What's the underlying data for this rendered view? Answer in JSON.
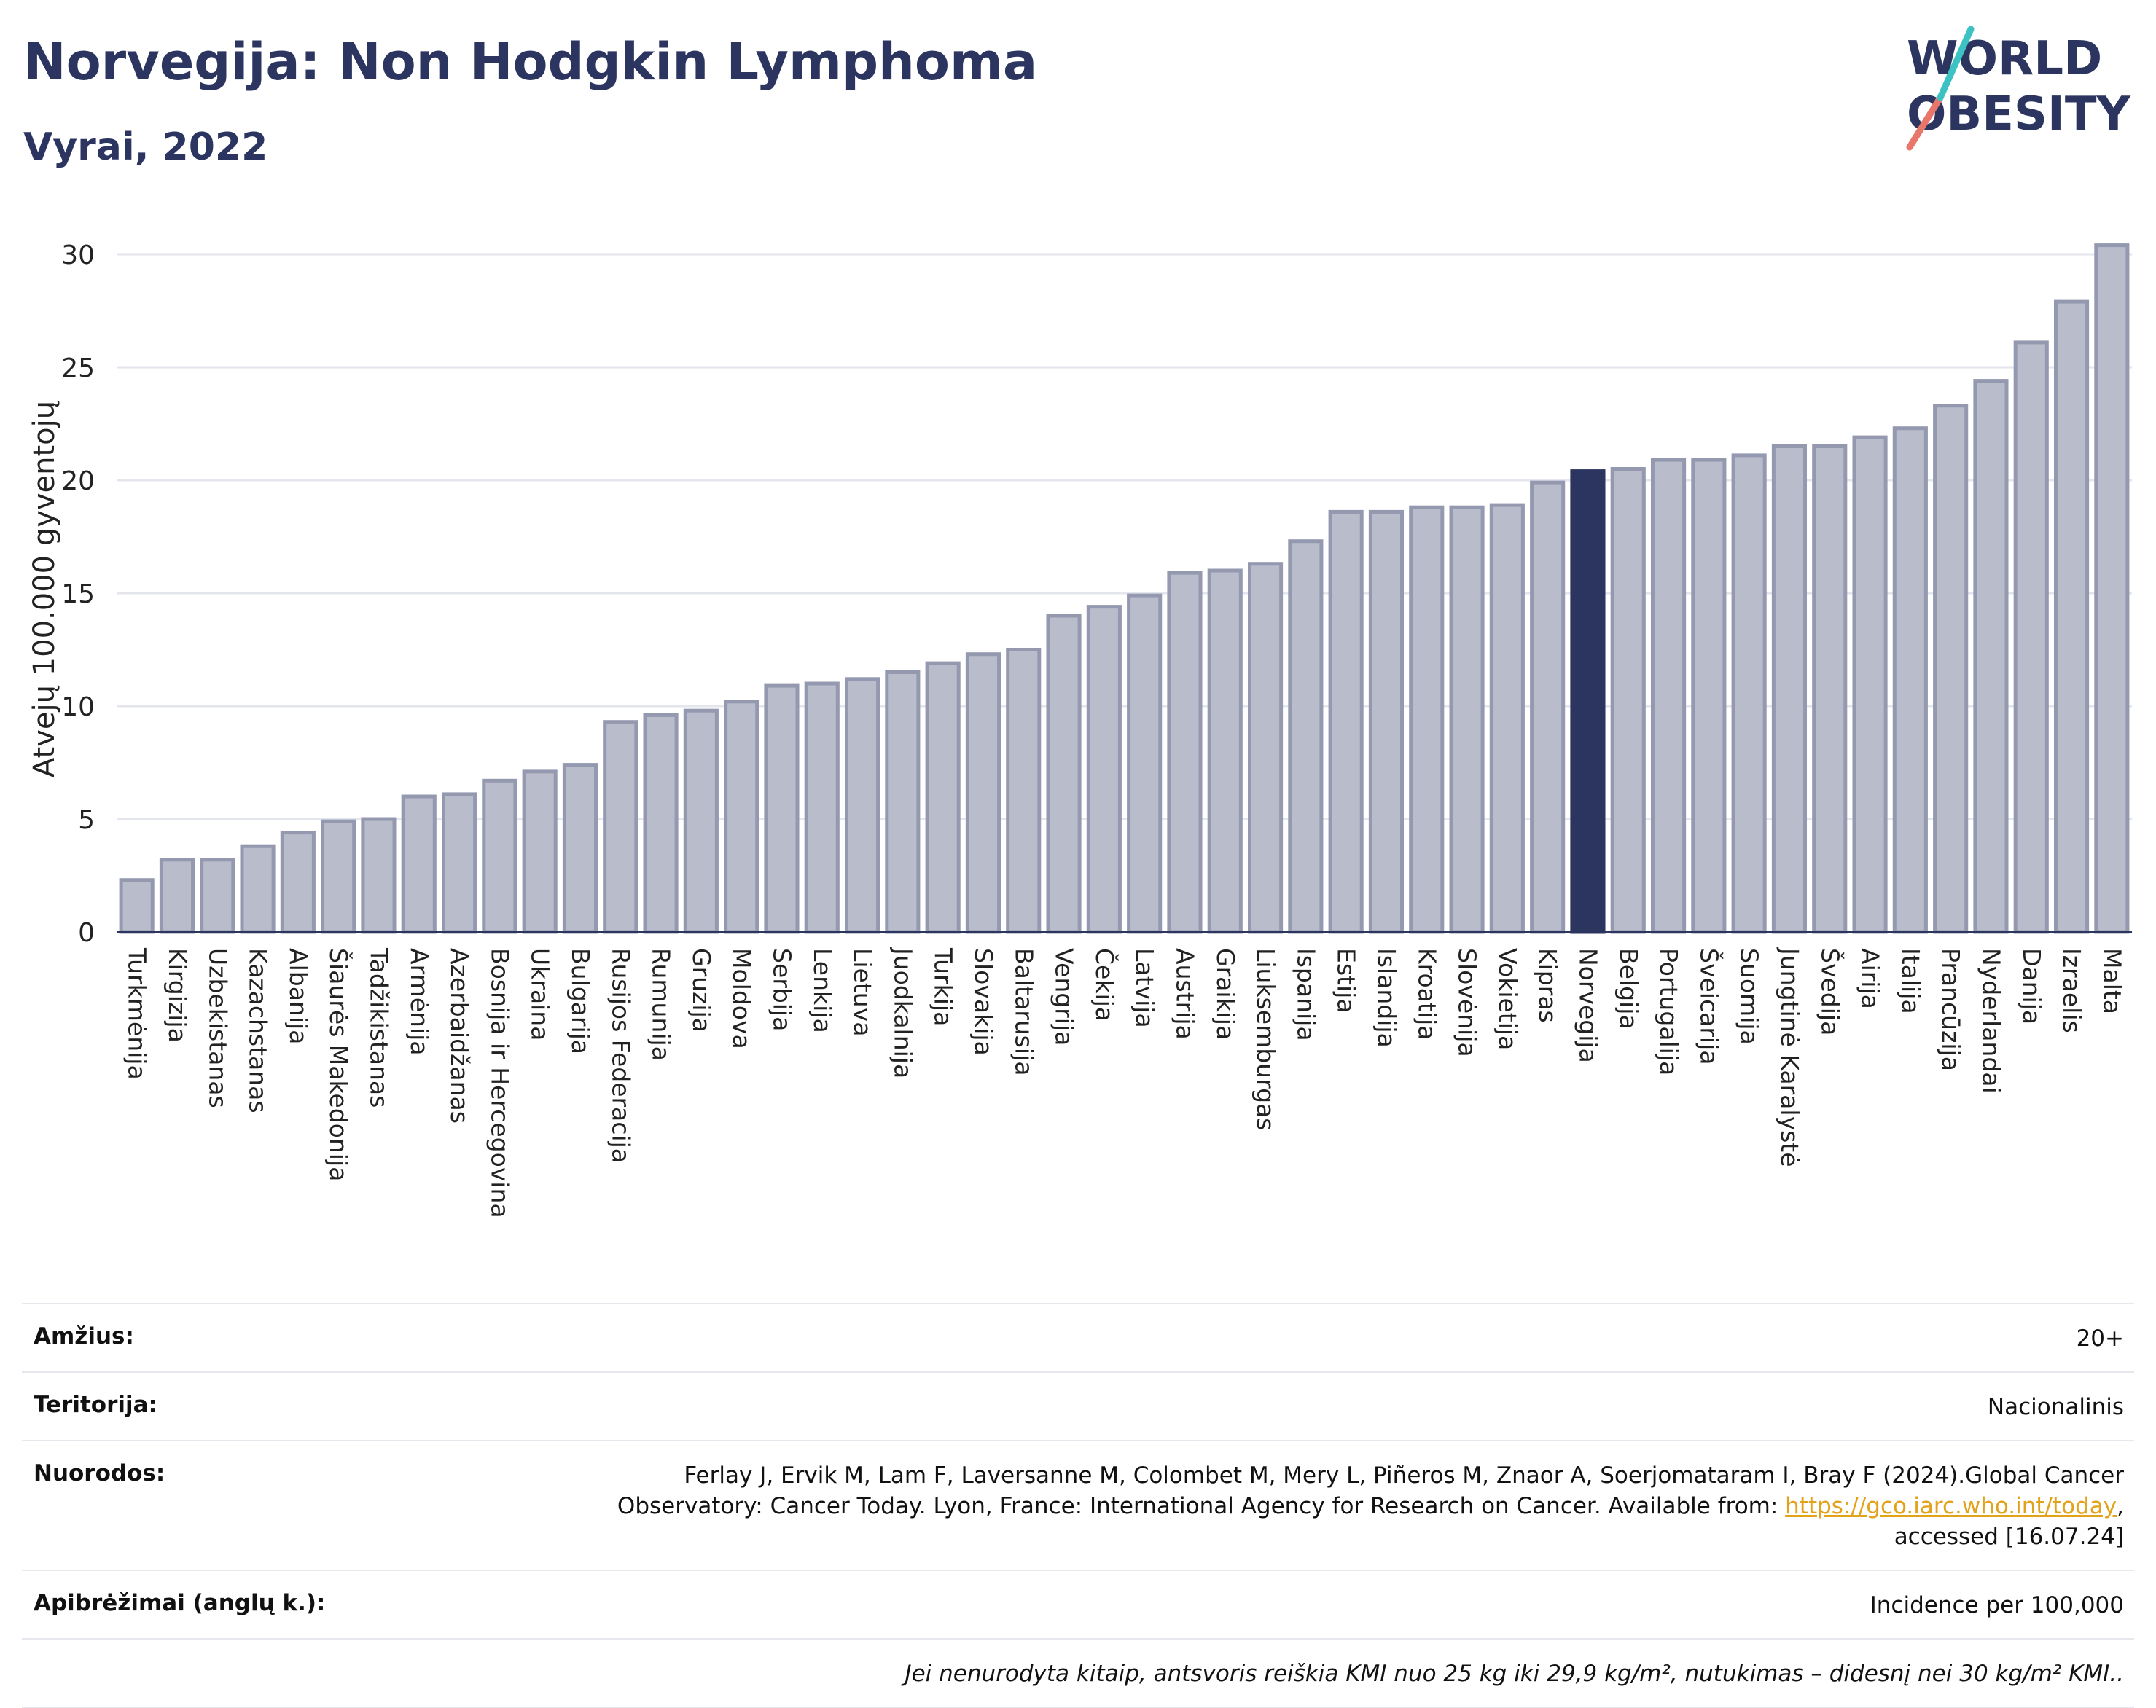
{
  "header": {
    "title": "Norvegija: Non Hodgkin Lymphoma",
    "subtitle": "Vyrai, 2022"
  },
  "logo": {
    "line1": "WORLD",
    "line2": "OBESITY",
    "colors": [
      "#2b3560",
      "#e8766a",
      "#3cc2c2"
    ]
  },
  "colors": {
    "bar": "#b8bccb",
    "bar_border": "#9499b0",
    "highlight": "#2b3560",
    "grid": "#e4e6ee",
    "axis": "#2b3560"
  },
  "chart_data": {
    "type": "bar",
    "title": "Norvegija: Non Hodgkin Lymphoma",
    "subtitle": "Vyrai, 2022",
    "ylabel": "Atvejų 100.000 gyventojų",
    "xlabel": "",
    "ylim": [
      0,
      31
    ],
    "yticks": [
      0,
      5,
      10,
      15,
      20,
      25,
      30
    ],
    "grid": true,
    "highlight": "Norvegija",
    "categories": [
      "Turkmėnija",
      "Kirgizija",
      "Uzbekistanas",
      "Kazachstanas",
      "Albanija",
      "Šiaurės Makedonija",
      "Tadžikistanas",
      "Armėnija",
      "Azerbaidžanas",
      "Bosnija ir Hercegovina",
      "Ukraina",
      "Bulgarija",
      "Rusijos Federacija",
      "Rumunija",
      "Gruzija",
      "Moldova",
      "Serbija",
      "Lenkija",
      "Lietuva",
      "Juodkalnija",
      "Turkija",
      "Slovakija",
      "Baltarusija",
      "Vengrija",
      "Čekija",
      "Latvija",
      "Austrija",
      "Graikija",
      "Liuksemburgas",
      "Ispanija",
      "Estija",
      "Islandija",
      "Kroatija",
      "Slovėnija",
      "Vokietija",
      "Kipras",
      "Norvegija",
      "Belgija",
      "Portugalija",
      "Šveicarija",
      "Suomija",
      "Jungtinė Karalystė",
      "Švedija",
      "Airija",
      "Italija",
      "Prancūzija",
      "Nyderlandai",
      "Danija",
      "Izraelis",
      "Malta"
    ],
    "values": [
      2.3,
      3.2,
      3.2,
      3.8,
      4.4,
      4.9,
      5.0,
      6.0,
      6.1,
      6.7,
      7.1,
      7.4,
      9.3,
      9.6,
      9.8,
      10.2,
      10.9,
      11.0,
      11.2,
      11.5,
      11.9,
      12.3,
      12.5,
      14.0,
      14.4,
      14.9,
      15.9,
      16.0,
      16.3,
      17.3,
      18.6,
      18.6,
      18.8,
      18.8,
      18.9,
      19.9,
      20.4,
      20.5,
      20.9,
      20.9,
      21.1,
      21.5,
      21.5,
      21.9,
      22.3,
      23.3,
      24.4,
      26.1,
      27.9,
      30.4
    ]
  },
  "info": {
    "age_label": "Amžius:",
    "age_value": "20+",
    "territory_label": "Teritorija:",
    "territory_value": "Nacionalinis",
    "refs_label": "Nuorodos:",
    "refs_text": "Ferlay J, Ervik M, Lam F, Laversanne M, Colombet M, Mery L, Piñeros M, Znaor A, Soerjomataram I, Bray F (2024).Global Cancer Observatory: Cancer Today. Lyon, France: International Agency for Research on Cancer. Available from: ",
    "refs_link": "https://gco.iarc.who.int/today",
    "refs_tail": ", accessed [16.07.24]",
    "defs_label": "Apibrėžimai (anglų k.):",
    "defs_value": "Incidence per 100,000",
    "note": "Jei nenurodyta kitaip, antsvoris reiškia KMI nuo 25 kg iki 29,9 kg/m², nutukimas – didesnį nei 30 kg/m² KMI.."
  }
}
